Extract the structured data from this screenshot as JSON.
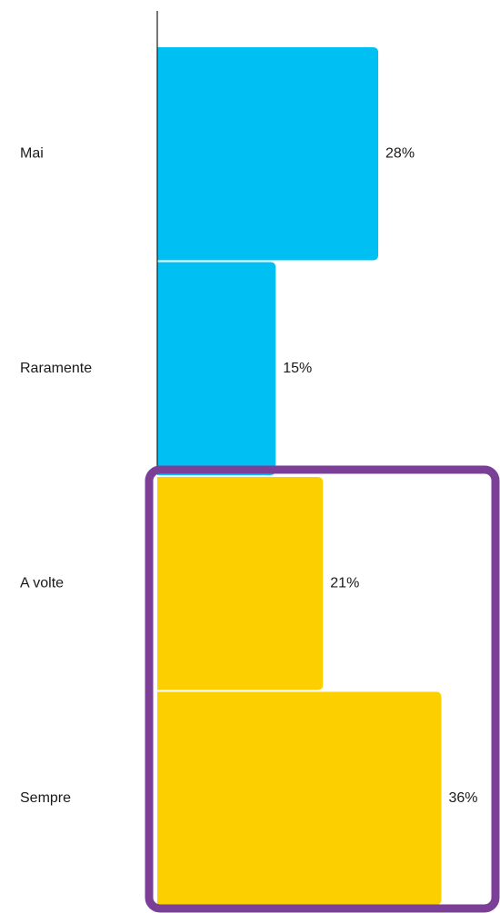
{
  "chart_data": {
    "type": "bar",
    "orientation": "horizontal",
    "categories": [
      "Mai",
      "Raramente",
      "A volte",
      "Sempre"
    ],
    "values": [
      28,
      15,
      21,
      36
    ],
    "value_labels": [
      "28%",
      "15%",
      "21%",
      "36%"
    ],
    "unit": "%",
    "title": "",
    "xlabel": "",
    "ylabel": "",
    "xlim": [
      0,
      42
    ],
    "grid": false,
    "legend": "none",
    "colors": {
      "Mai": "#00BFF3",
      "Raramente": "#00BFF3",
      "A volte": "#FCD000",
      "Sempre": "#FCD000"
    },
    "highlight": {
      "categories": [
        "A volte",
        "Sempre"
      ],
      "color": "#7B3F98"
    }
  }
}
